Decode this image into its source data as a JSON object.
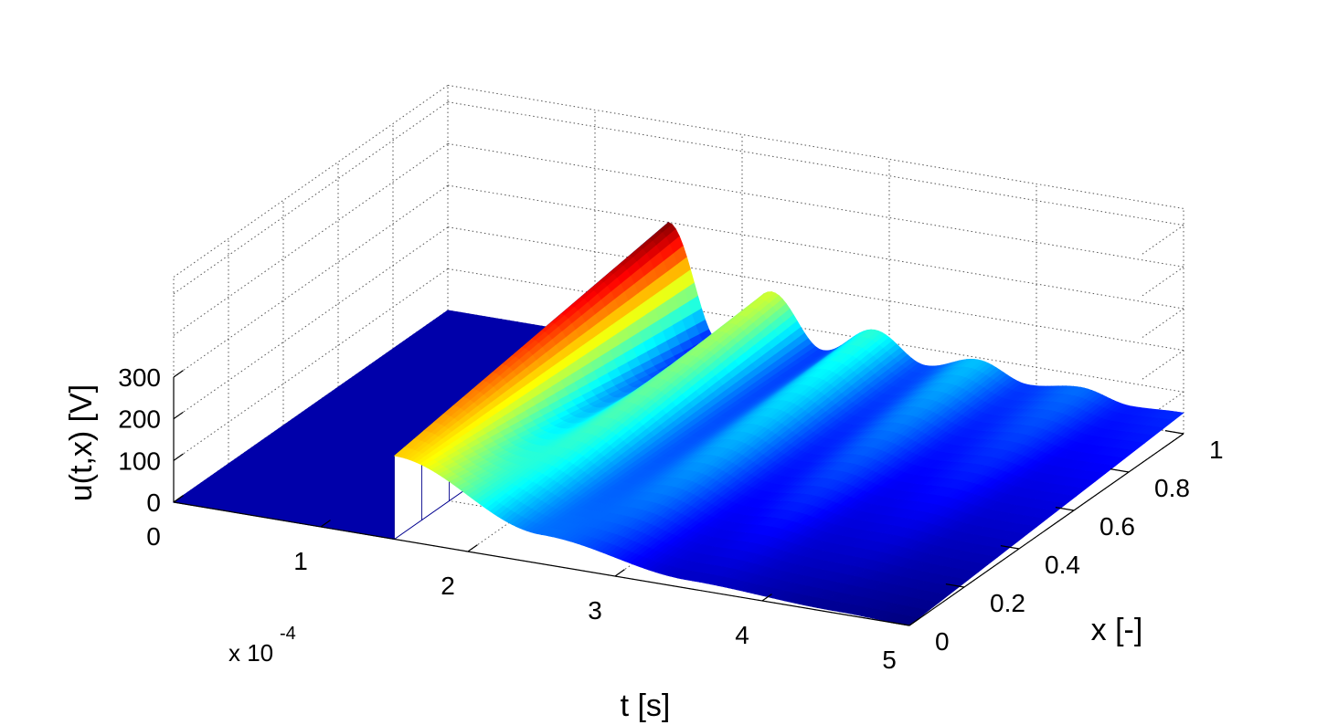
{
  "chart_data": {
    "type": "surface",
    "colormap": "jet",
    "grid": true,
    "xlabel": "t [s]",
    "ylabel": "x [-]",
    "zlabel": "u(t,x) [V]",
    "x_ticks": [
      "0",
      "1",
      "2",
      "3",
      "4",
      "5"
    ],
    "x_exponent": "x 10",
    "x_exponent_power": "-4",
    "y_ticks": [
      "0",
      "0.2",
      "0.4",
      "0.6",
      "0.8",
      "1"
    ],
    "z_ticks": [
      "0",
      "100",
      "200",
      "300"
    ],
    "xlim": [
      0,
      0.0005
    ],
    "ylim": [
      0,
      1
    ],
    "zlim": [
      0,
      300
    ],
    "front_edge_x_is_1": {
      "t": [
        0.00015,
        0.000185,
        0.00022,
        0.000255,
        0.00029,
        0.000325,
        0.00036,
        0.000395,
        0.00043,
        0.000465,
        0.0005
      ],
      "u": [
        300,
        30,
        175,
        55,
        125,
        60,
        95,
        55,
        70,
        45,
        50
      ]
    },
    "back_edge_x_is_0": {
      "t": [
        0.00015,
        0.00025,
        0.00035,
        0.00045,
        0.0005
      ],
      "u": [
        200,
        70,
        20,
        5,
        0
      ]
    },
    "notes": [
      "u = 0 for t < 1.5 x 10^-4"
    ]
  }
}
